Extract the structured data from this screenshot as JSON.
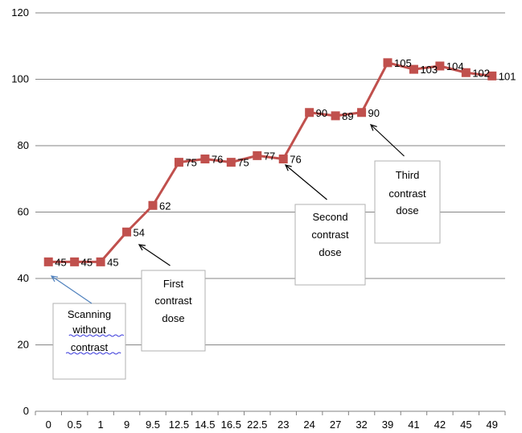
{
  "chart_data": {
    "type": "line",
    "categories": [
      "0",
      "0.5",
      "1",
      "9",
      "9.5",
      "12.5",
      "14.5",
      "16.5",
      "22.5",
      "23",
      "24",
      "27",
      "32",
      "39",
      "41",
      "42",
      "45",
      "49"
    ],
    "values": [
      45,
      45,
      45,
      54,
      62,
      75,
      76,
      75,
      77,
      76,
      90,
      89,
      90,
      105,
      103,
      104,
      102,
      101
    ],
    "data_labels": [
      "45",
      "45",
      "45",
      "54",
      "62",
      "75",
      "76",
      "75",
      "77",
      "76",
      "90",
      "89",
      "90",
      "105",
      "103",
      "104",
      "102",
      "101"
    ],
    "series_color": "#C0504D",
    "ylim": [
      0,
      120
    ],
    "yticks": [
      "0",
      "20",
      "40",
      "60",
      "80",
      "100",
      "120"
    ],
    "grid": true,
    "legend": "none",
    "annotations": [
      {
        "lines": [
          "Scanning",
          "without",
          "contrast"
        ],
        "target_index": 0,
        "arrow_color": "#4F81BD",
        "underlined": true
      },
      {
        "lines": [
          "First",
          "contrast",
          "dose"
        ],
        "target_index": 3,
        "arrow_color": "#000000",
        "underlined": false
      },
      {
        "lines": [
          "Second",
          "contrast",
          "dose"
        ],
        "target_index": 9,
        "arrow_color": "#000000",
        "underlined": false
      },
      {
        "lines": [
          "Third",
          "contrast",
          "dose"
        ],
        "target_index": 12,
        "arrow_color": "#000000",
        "underlined": false
      }
    ]
  }
}
